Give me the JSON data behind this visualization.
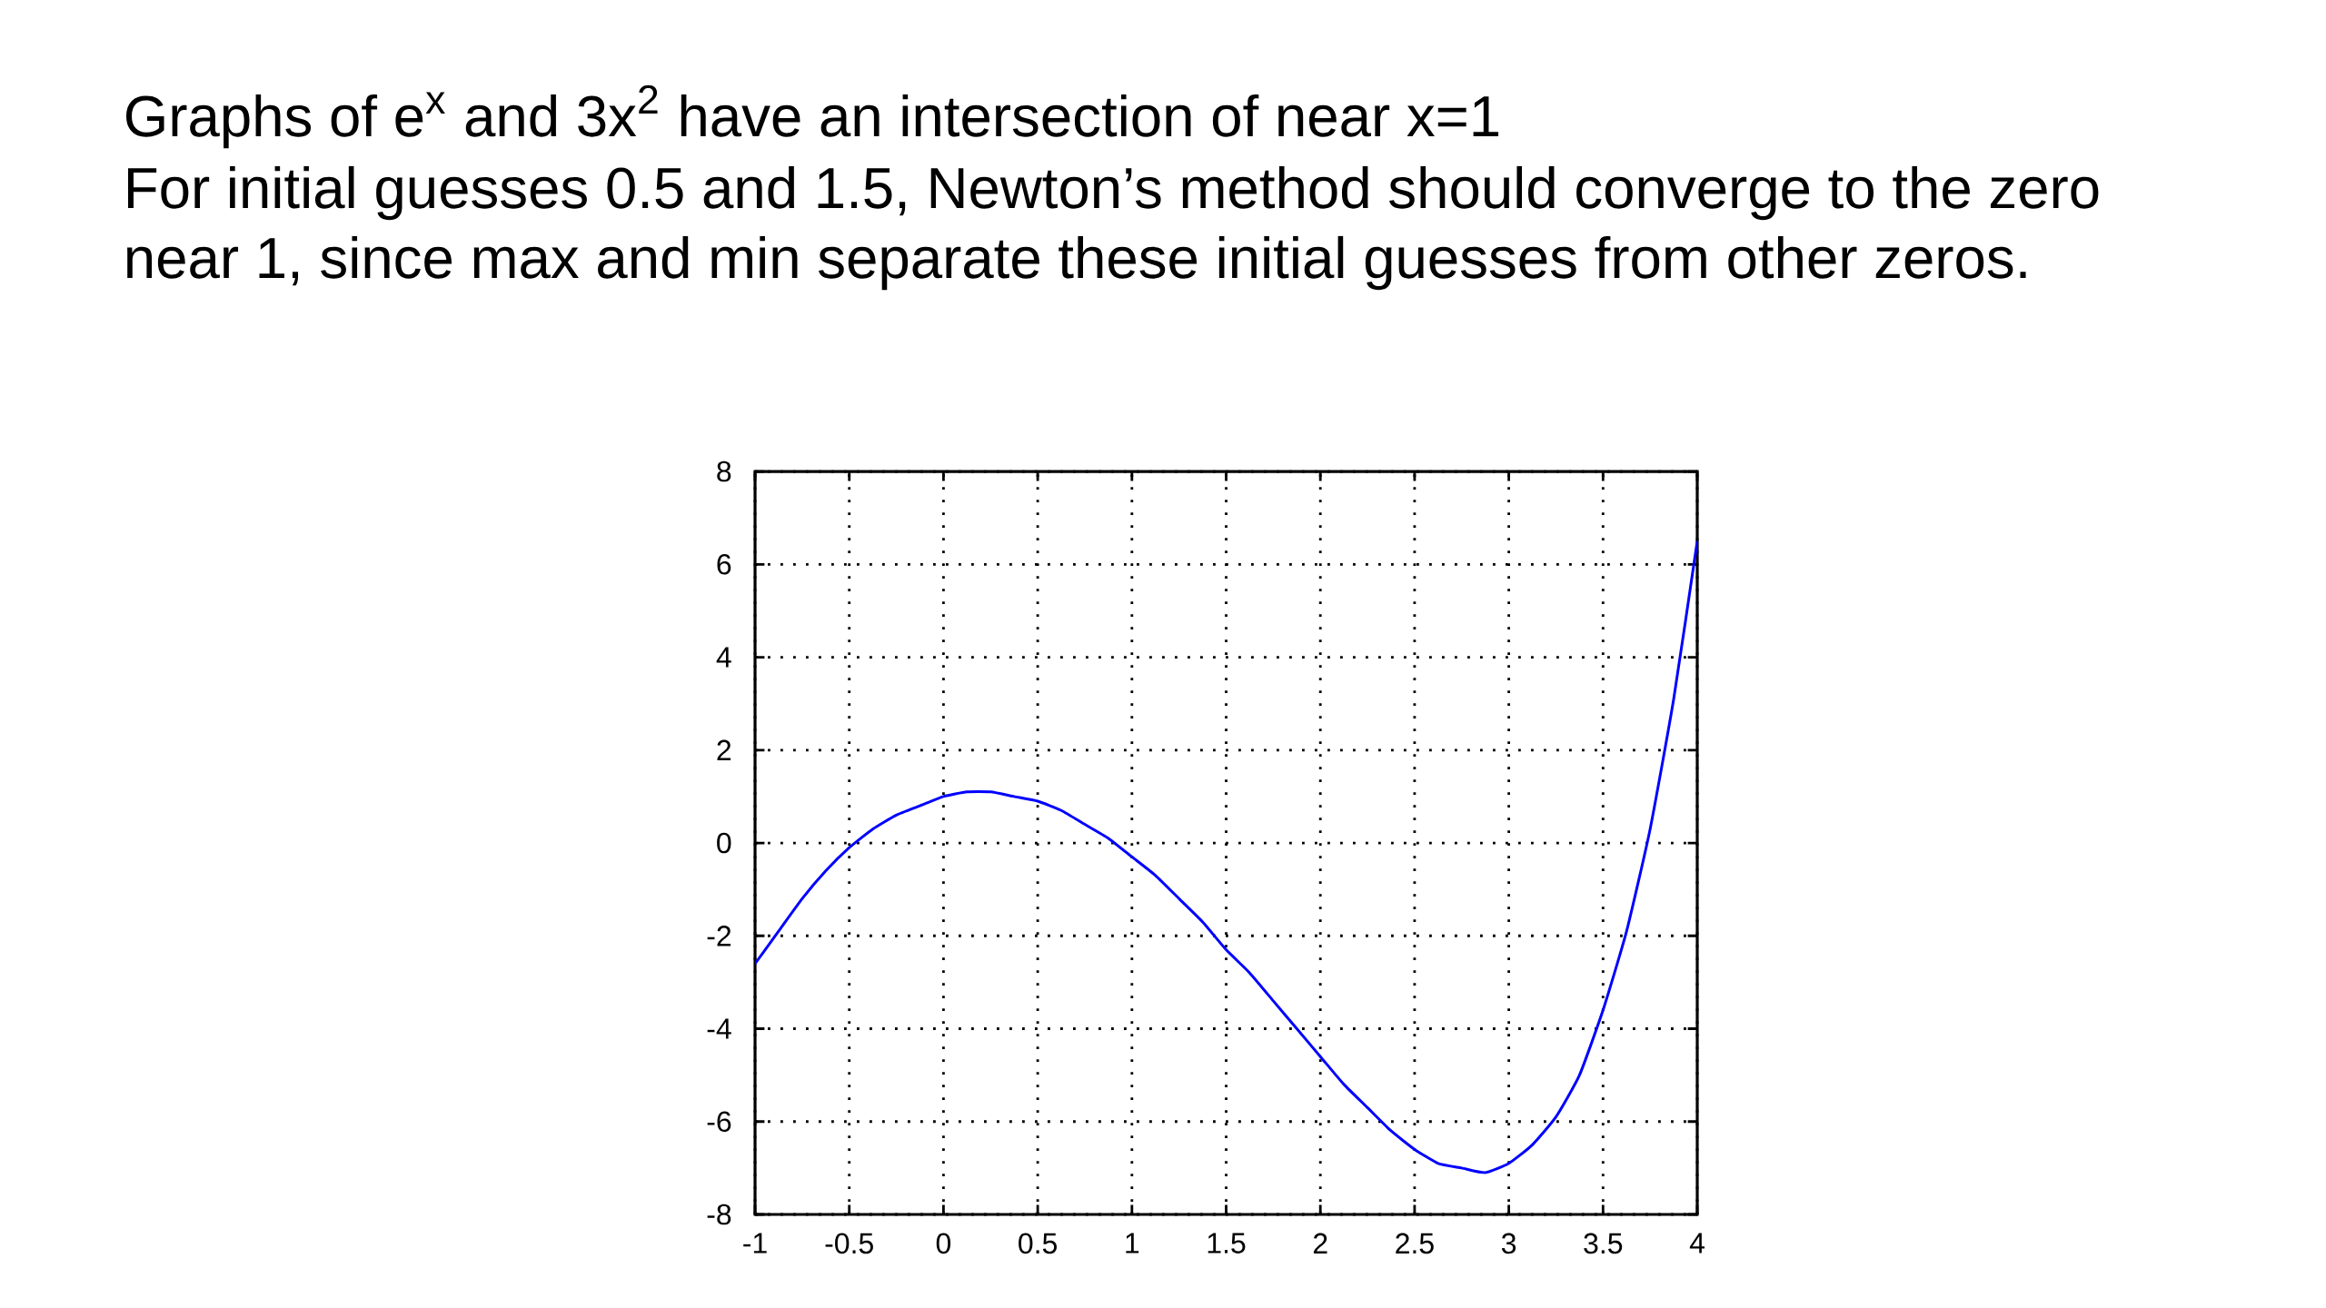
{
  "chart_data": {
    "type": "line",
    "title": "Graphs of e$^{x}$ and 3x$^{2}$ have an intersection of near x=1",
    "subtitle": "For initial guesses 0.5 and 1.5, Newton’s method should converge to the zero near 1, since max and min separate these initial guesses from other zeros.",
    "x": [
      -1,
      -0.875,
      -0.75,
      -0.625,
      -0.5,
      -0.375,
      -0.25,
      -0.125,
      0,
      0.125,
      0.25,
      0.375,
      0.5,
      0.625,
      0.75,
      0.875,
      1,
      1.125,
      1.25,
      1.375,
      1.5,
      1.625,
      1.75,
      1.875,
      2,
      2.125,
      2.25,
      2.375,
      2.5,
      2.625,
      2.75,
      2.875,
      3,
      3.125,
      3.25,
      3.375,
      3.5,
      3.625,
      3.75,
      3.875,
      4
    ],
    "values": [
      -2.6,
      -1.9,
      -1.2,
      -0.6,
      -0.1,
      0.3,
      0.6,
      0.8,
      1.0,
      1.1,
      1.1,
      1.0,
      0.9,
      0.7,
      0.4,
      0.1,
      -0.3,
      -0.7,
      -1.2,
      -1.7,
      -2.3,
      -2.8,
      -3.4,
      -4.0,
      -4.6,
      -5.2,
      -5.7,
      -6.2,
      -6.6,
      -6.9,
      -7.0,
      -7.1,
      -6.9,
      -6.5,
      -5.9,
      -5.0,
      -3.6,
      -1.9,
      0.3,
      3.1,
      6.5
    ],
    "color": "#0000ff",
    "xlim": [
      -1,
      4
    ],
    "ylim": [
      -8,
      8
    ],
    "xticks": [
      -1,
      -0.5,
      0,
      0.5,
      1,
      1.5,
      2,
      2.5,
      3,
      3.5,
      4
    ],
    "yticks": [
      -8,
      -6,
      -4,
      -2,
      0,
      2,
      4,
      6,
      8
    ],
    "grid": true
  }
}
